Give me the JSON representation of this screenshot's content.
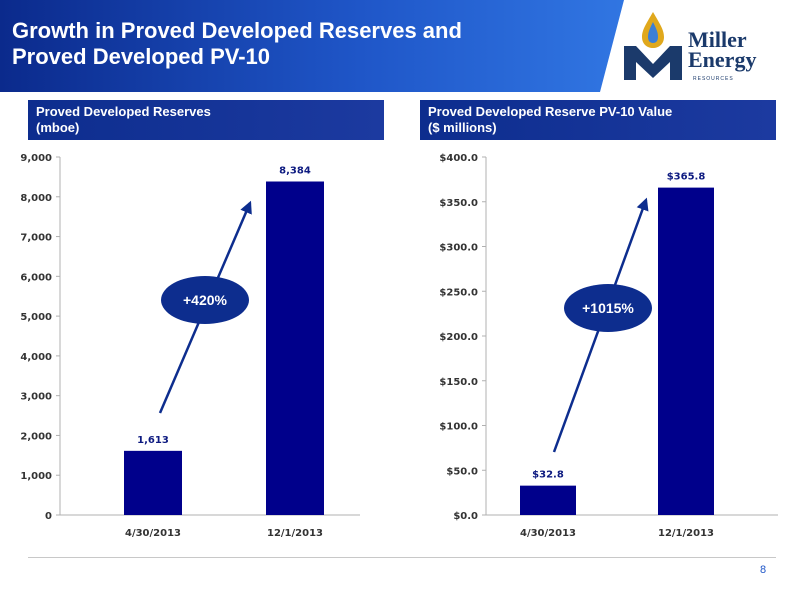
{
  "header": {
    "title": "Growth in Proved Developed Reserves and\nProved Developed PV-10"
  },
  "logo": {
    "name": "Miller\nEnergy",
    "sub": "RESOURCES"
  },
  "colors": {
    "bar": "#00008b",
    "accent": "#0d2d8e",
    "header_start": "#0b2a8c",
    "header_end": "#3b86ee"
  },
  "chart_data": [
    {
      "type": "bar",
      "title": "Proved Developed Reserves\n(mboe)",
      "categories": [
        "4/30/2013",
        "12/1/2013"
      ],
      "values": [
        1613,
        8384
      ],
      "value_labels": [
        "1,613",
        "8,384"
      ],
      "ylim": [
        0,
        9000
      ],
      "yticks": [
        0,
        1000,
        2000,
        3000,
        4000,
        5000,
        6000,
        7000,
        8000,
        9000
      ],
      "ytick_labels": [
        "0",
        "1,000",
        "2,000",
        "3,000",
        "4,000",
        "5,000",
        "6,000",
        "7,000",
        "8,000",
        "9,000"
      ],
      "annotation": "+420%",
      "grid": false
    },
    {
      "type": "bar",
      "title": "Proved Developed Reserve PV-10 Value\n($ millions)",
      "categories": [
        "4/30/2013",
        "12/1/2013"
      ],
      "values": [
        32.8,
        365.8
      ],
      "value_labels": [
        "$32.8",
        "$365.8"
      ],
      "ylim": [
        0,
        400
      ],
      "yticks": [
        0,
        50,
        100,
        150,
        200,
        250,
        300,
        350,
        400
      ],
      "ytick_labels": [
        "$0.0",
        "$50.0",
        "$100.0",
        "$150.0",
        "$200.0",
        "$250.0",
        "$300.0",
        "$350.0",
        "$400.0"
      ],
      "annotation": "+1015%",
      "grid": false
    }
  ],
  "footer": {
    "page_number": "8"
  }
}
